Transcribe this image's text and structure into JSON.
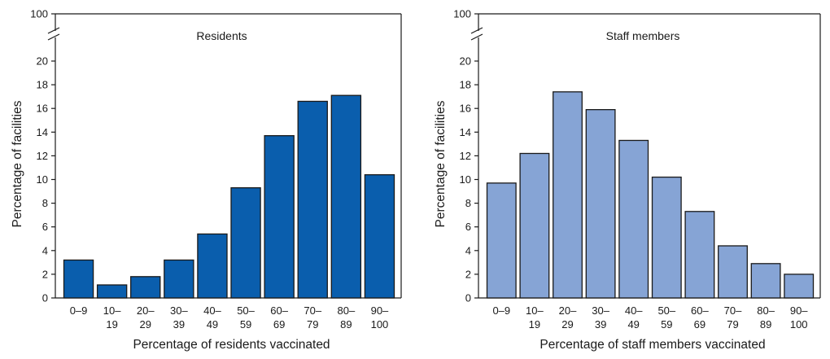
{
  "chart_data": [
    {
      "type": "bar",
      "title": "Residents",
      "xlabel": "Percentage of residents vaccinated",
      "ylabel": "Percentage of facilities",
      "categories": [
        [
          "0–9"
        ],
        [
          "10–",
          "19"
        ],
        [
          "20–",
          "29"
        ],
        [
          "30–",
          "39"
        ],
        [
          "40–",
          "49"
        ],
        [
          "50–",
          "59"
        ],
        [
          "60–",
          "69"
        ],
        [
          "70–",
          "79"
        ],
        [
          "80–",
          "89"
        ],
        [
          "90–",
          "100"
        ]
      ],
      "values": [
        3.2,
        1.1,
        1.8,
        3.2,
        5.4,
        9.3,
        13.7,
        16.6,
        17.1,
        10.4
      ],
      "yticks": [
        0,
        2,
        4,
        6,
        8,
        10,
        12,
        14,
        16,
        18,
        20
      ],
      "ybreak_label": 100,
      "ylim": [
        0,
        20
      ],
      "bar_color": "#0a5ead"
    },
    {
      "type": "bar",
      "title": "Staff members",
      "xlabel": "Percentage of staff members vaccinated",
      "ylabel": "Percentage of facilities",
      "categories": [
        [
          "0–9"
        ],
        [
          "10–",
          "19"
        ],
        [
          "20–",
          "29"
        ],
        [
          "30–",
          "39"
        ],
        [
          "40–",
          "49"
        ],
        [
          "50–",
          "59"
        ],
        [
          "60–",
          "69"
        ],
        [
          "70–",
          "79"
        ],
        [
          "80–",
          "89"
        ],
        [
          "90–",
          "100"
        ]
      ],
      "values": [
        9.7,
        12.2,
        17.4,
        15.9,
        13.3,
        10.2,
        7.3,
        4.4,
        2.9,
        2.0
      ],
      "yticks": [
        0,
        2,
        4,
        6,
        8,
        10,
        12,
        14,
        16,
        18,
        20
      ],
      "ybreak_label": 100,
      "ylim": [
        0,
        20
      ],
      "bar_color": "#86a4d5"
    }
  ]
}
